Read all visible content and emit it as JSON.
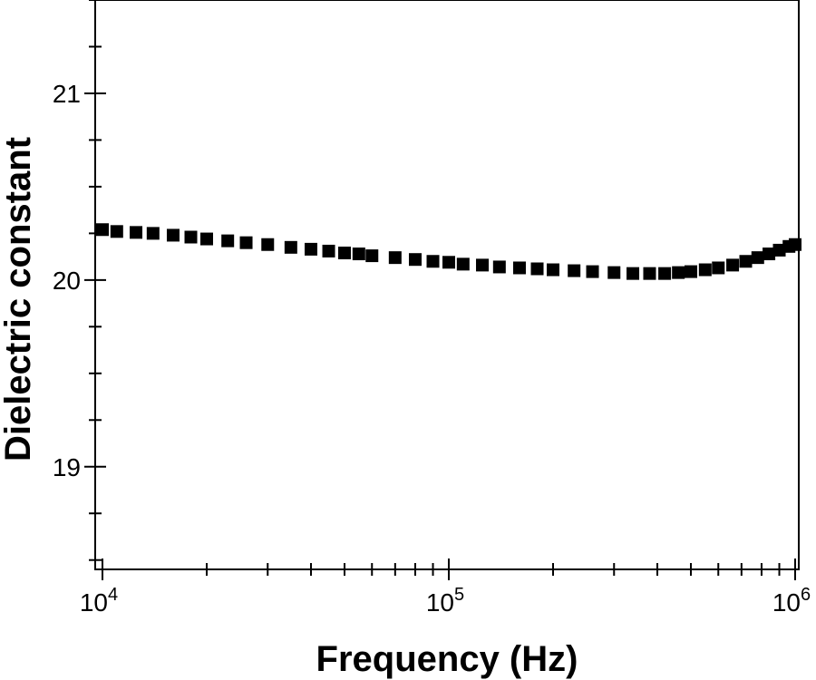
{
  "chart_data": {
    "type": "scatter",
    "title": "",
    "xlabel": "Frequency (Hz)",
    "ylabel": "Dielectric constant",
    "xscale": "log",
    "xlim": [
      10000,
      1000000
    ],
    "ylim": [
      18.45,
      21.5
    ],
    "x_ticks": [
      {
        "value": 10000,
        "base": "10",
        "exp": "4"
      },
      {
        "value": 100000,
        "base": "10",
        "exp": "5"
      },
      {
        "value": 1000000,
        "base": "10",
        "exp": "6"
      }
    ],
    "y_ticks": [
      {
        "value": 19,
        "label": "19"
      },
      {
        "value": 20,
        "label": "20"
      },
      {
        "value": 21,
        "label": "21"
      }
    ],
    "grid": false,
    "legend": "none",
    "marker": "square",
    "marker_color": "#000000",
    "series": [
      {
        "x": [
          10000,
          11000,
          12500,
          14000,
          16000,
          18000,
          20000,
          23000,
          26000,
          30000,
          35000,
          40000,
          45000,
          50000,
          55000,
          60000,
          70000,
          80000,
          90000,
          100000,
          110000,
          125000,
          140000,
          160000,
          180000,
          200000,
          230000,
          260000,
          300000,
          340000,
          380000,
          420000,
          460000,
          500000,
          550000,
          600000,
          660000,
          720000,
          780000,
          840000,
          900000,
          960000,
          1000000
        ],
        "y": [
          20.27,
          20.26,
          20.255,
          20.25,
          20.24,
          20.23,
          20.22,
          20.21,
          20.2,
          20.19,
          20.175,
          20.165,
          20.155,
          20.145,
          20.14,
          20.13,
          20.12,
          20.11,
          20.1,
          20.095,
          20.085,
          20.08,
          20.07,
          20.065,
          20.06,
          20.055,
          20.05,
          20.045,
          20.04,
          20.035,
          20.035,
          20.035,
          20.04,
          20.045,
          20.055,
          20.065,
          20.08,
          20.1,
          20.12,
          20.14,
          20.16,
          20.18,
          20.19
        ]
      }
    ]
  }
}
